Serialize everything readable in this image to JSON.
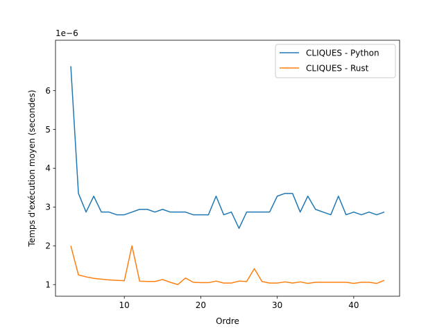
{
  "chart_data": {
    "type": "line",
    "xlabel": "Ordre",
    "ylabel": "Temps d'exécution moyen (secondes)",
    "y_offset_label": "1e−6",
    "xlim": [
      1,
      46
    ],
    "ylim": [
      0.7,
      7.3
    ],
    "x_ticks": [
      10,
      20,
      30,
      40
    ],
    "y_ticks": [
      1,
      2,
      3,
      4,
      5,
      6
    ],
    "legend_position": "top-right",
    "series": [
      {
        "name": "CLIQUES - Python",
        "color": "#1f77b4",
        "x": [
          3,
          4,
          5,
          6,
          7,
          8,
          9,
          10,
          11,
          12,
          13,
          14,
          15,
          16,
          17,
          18,
          19,
          20,
          21,
          22,
          23,
          24,
          25,
          26,
          27,
          28,
          29,
          30,
          31,
          32,
          33,
          34,
          35,
          36,
          37,
          38,
          39,
          40,
          41,
          42,
          43,
          44
        ],
        "y": [
          6.63,
          3.35,
          2.87,
          3.28,
          2.87,
          2.87,
          2.8,
          2.8,
          2.87,
          2.94,
          2.94,
          2.87,
          2.94,
          2.87,
          2.87,
          2.87,
          2.8,
          2.8,
          2.8,
          3.28,
          2.8,
          2.87,
          2.45,
          2.87,
          2.87,
          2.87,
          2.87,
          3.28,
          3.35,
          3.35,
          2.87,
          3.28,
          2.94,
          2.87,
          2.8,
          3.28,
          2.8,
          2.87,
          2.8,
          2.87,
          2.8,
          2.87
        ]
      },
      {
        "name": "CLIQUES - Rust",
        "color": "#ff7f0e",
        "x": [
          3,
          4,
          5,
          6,
          7,
          8,
          9,
          10,
          11,
          12,
          13,
          14,
          15,
          16,
          17,
          18,
          19,
          20,
          21,
          22,
          23,
          24,
          25,
          26,
          27,
          28,
          29,
          30,
          31,
          32,
          33,
          34,
          35,
          36,
          37,
          38,
          39,
          40,
          41,
          42,
          43,
          44
        ],
        "y": [
          2.0,
          1.25,
          1.2,
          1.16,
          1.14,
          1.12,
          1.11,
          1.1,
          2.0,
          1.09,
          1.08,
          1.08,
          1.13,
          1.06,
          1.0,
          1.17,
          1.06,
          1.05,
          1.05,
          1.09,
          1.04,
          1.04,
          1.09,
          1.08,
          1.41,
          1.08,
          1.04,
          1.04,
          1.07,
          1.04,
          1.07,
          1.03,
          1.06,
          1.06,
          1.06,
          1.06,
          1.06,
          1.03,
          1.06,
          1.06,
          1.03,
          1.11
        ]
      }
    ]
  }
}
